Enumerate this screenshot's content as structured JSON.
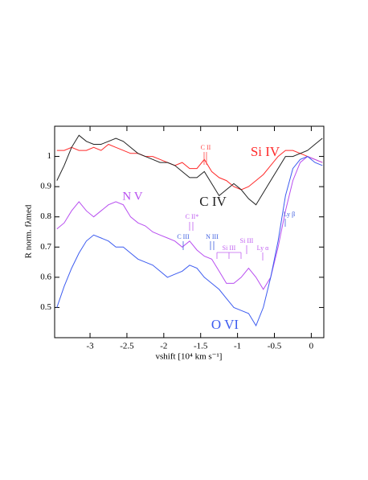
{
  "chart_data": {
    "type": "line",
    "xlabel": "vshift [10⁴ km s⁻¹]",
    "ylabel": "R norm. fλmed",
    "x": [
      -3.45,
      -3.35,
      -3.25,
      -3.15,
      -3.05,
      -2.95,
      -2.85,
      -2.75,
      -2.65,
      -2.55,
      -2.45,
      -2.35,
      -2.25,
      -2.15,
      -2.05,
      -1.95,
      -1.85,
      -1.75,
      -1.65,
      -1.55,
      -1.45,
      -1.35,
      -1.25,
      -1.15,
      -1.05,
      -0.95,
      -0.85,
      -0.75,
      -0.65,
      -0.55,
      -0.45,
      -0.35,
      -0.25,
      -0.15,
      -0.05,
      0.05,
      0.15
    ],
    "series": [
      {
        "name": "Si IV",
        "color": "#ff2a2a",
        "values": [
          1.02,
          1.02,
          1.03,
          1.02,
          1.02,
          1.03,
          1.02,
          1.04,
          1.03,
          1.02,
          1.01,
          1.01,
          1.0,
          1.0,
          0.99,
          0.98,
          0.97,
          0.98,
          0.96,
          0.96,
          0.99,
          0.95,
          0.93,
          0.92,
          0.9,
          0.89,
          0.9,
          0.92,
          0.94,
          0.97,
          1.0,
          1.02,
          1.02,
          1.01,
          1.0,
          0.99,
          0.98
        ]
      },
      {
        "name": "C IV",
        "color": "#222222",
        "values": [
          0.92,
          0.97,
          1.03,
          1.07,
          1.05,
          1.04,
          1.04,
          1.05,
          1.06,
          1.05,
          1.03,
          1.01,
          1.0,
          0.99,
          0.98,
          0.98,
          0.97,
          0.95,
          0.93,
          0.93,
          0.95,
          0.91,
          0.87,
          0.89,
          0.91,
          0.89,
          0.86,
          0.84,
          0.88,
          0.92,
          0.96,
          1.0,
          1.0,
          1.01,
          1.02,
          1.04,
          1.06
        ]
      },
      {
        "name": "N V",
        "color": "#b84ef0",
        "values": [
          0.76,
          0.78,
          0.82,
          0.85,
          0.82,
          0.8,
          0.82,
          0.84,
          0.85,
          0.84,
          0.8,
          0.78,
          0.77,
          0.75,
          0.74,
          0.73,
          0.72,
          0.7,
          0.72,
          0.69,
          0.67,
          0.66,
          0.62,
          0.58,
          0.58,
          0.6,
          0.63,
          0.6,
          0.56,
          0.6,
          0.7,
          0.82,
          0.92,
          0.98,
          1.0,
          0.99,
          0.98
        ]
      },
      {
        "name": "O VI",
        "color": "#3d5cf0",
        "values": [
          0.5,
          0.57,
          0.63,
          0.68,
          0.72,
          0.74,
          0.73,
          0.72,
          0.7,
          0.7,
          0.68,
          0.66,
          0.65,
          0.64,
          0.62,
          0.6,
          0.61,
          0.62,
          0.64,
          0.63,
          0.6,
          0.58,
          0.56,
          0.53,
          0.5,
          0.49,
          0.48,
          0.44,
          0.5,
          0.6,
          0.72,
          0.87,
          0.96,
          0.99,
          1.0,
          0.98,
          0.97
        ]
      }
    ],
    "annotations": [
      {
        "text": "C II",
        "color": "#ff4a4a"
      },
      {
        "text": "C II*",
        "color": "#c060f0"
      },
      {
        "text": "C III",
        "color": "#4060e0"
      },
      {
        "text": "N III",
        "color": "#4060e0"
      },
      {
        "text": "Si III",
        "color": "#c060f0"
      },
      {
        "text": "Si III",
        "color": "#c060f0"
      },
      {
        "text": "Ly α",
        "color": "#c060f0"
      },
      {
        "text": "Ly β",
        "color": "#4060e0"
      }
    ],
    "xlim": [
      -3.48,
      0.17
    ],
    "ylim": [
      0.4,
      1.1
    ],
    "xticks": [
      -3,
      -2.5,
      -2,
      -1.5,
      -1,
      -0.5,
      0
    ],
    "yticks": [
      0.5,
      0.6,
      0.7,
      0.8,
      0.9,
      1
    ]
  }
}
